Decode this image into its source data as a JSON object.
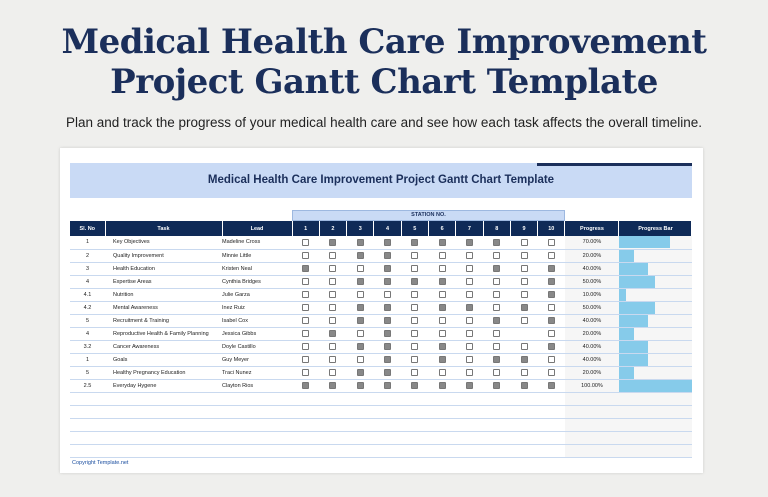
{
  "page": {
    "title_line1": "Medical Health Care Improvement",
    "title_line2": "Project Gantt Chart Template",
    "subtitle": "Plan and track the progress of your medical health care and see how each task affects the overall timeline."
  },
  "sheet": {
    "title": "Medical Health Care Improvement Project Gantt Chart Template",
    "station_header": "STATION NO.",
    "copyright": "Copyright Template.net",
    "headers": {
      "sl": "Sl. No",
      "task": "Task",
      "lead": "Lead",
      "stations": [
        "1",
        "2",
        "3",
        "4",
        "5",
        "6",
        "7",
        "8",
        "9",
        "10"
      ],
      "progress": "Progress",
      "bar": "Progress Bar"
    },
    "bar_color": "#86cbea",
    "header_color": "#0f2a57",
    "rows": [
      {
        "sl": "1",
        "task": "Key Objectives",
        "lead": "Madeline Cross",
        "checks": [
          0,
          1,
          1,
          1,
          1,
          1,
          1,
          1,
          0,
          0
        ],
        "progress": "70.00%",
        "pct": 70
      },
      {
        "sl": "2",
        "task": "Quality Improvement",
        "lead": "Minnie Little",
        "checks": [
          0,
          0,
          1,
          1,
          0,
          0,
          0,
          0,
          0,
          0
        ],
        "progress": "20.00%",
        "pct": 20
      },
      {
        "sl": "3",
        "task": "Health Education",
        "lead": "Kristen Neal",
        "checks": [
          1,
          0,
          0,
          1,
          0,
          0,
          0,
          1,
          0,
          1
        ],
        "progress": "40.00%",
        "pct": 40
      },
      {
        "sl": "4",
        "task": "Expertise Areas",
        "lead": "Cynthia Bridges",
        "checks": [
          0,
          0,
          1,
          1,
          1,
          1,
          0,
          0,
          0,
          1
        ],
        "progress": "50.00%",
        "pct": 50
      },
      {
        "sl": "4.1",
        "task": "Nutrition",
        "lead": "Julie Garza",
        "checks": [
          0,
          0,
          0,
          0,
          0,
          0,
          0,
          0,
          0,
          1
        ],
        "progress": "10.00%",
        "pct": 10
      },
      {
        "sl": "4.2",
        "task": "Mental Awareness",
        "lead": "Inez Ruiz",
        "checks": [
          0,
          0,
          1,
          1,
          0,
          1,
          1,
          0,
          1,
          0
        ],
        "progress": "50.00%",
        "pct": 50
      },
      {
        "sl": "5",
        "task": "Recruitment & Training",
        "lead": "Isabel Cox",
        "checks": [
          0,
          0,
          1,
          1,
          0,
          0,
          0,
          1,
          0,
          1
        ],
        "progress": "40.00%",
        "pct": 40
      },
      {
        "sl": "4",
        "task": "Reproductive Health & Family Planning",
        "lead": "Jessica Gibbs",
        "checks": [
          0,
          1,
          0,
          1,
          0,
          0,
          0,
          0,
          null,
          0
        ],
        "progress": "20.00%",
        "pct": 20
      },
      {
        "sl": "3.2",
        "task": "Cancer Awareness",
        "lead": "Doyle Castillo",
        "checks": [
          0,
          0,
          1,
          1,
          0,
          1,
          0,
          0,
          0,
          1
        ],
        "progress": "40.00%",
        "pct": 40
      },
      {
        "sl": "1",
        "task": "Goals",
        "lead": "Guy Meyer",
        "checks": [
          0,
          0,
          0,
          1,
          0,
          1,
          0,
          1,
          1,
          0
        ],
        "progress": "40.00%",
        "pct": 40
      },
      {
        "sl": "5",
        "task": "Healthy Pregnancy Education",
        "lead": "Traci Nunez",
        "checks": [
          0,
          0,
          1,
          1,
          0,
          0,
          0,
          0,
          0,
          0
        ],
        "progress": "20.00%",
        "pct": 20
      },
      {
        "sl": "2.5",
        "task": "Everyday Hygene",
        "lead": "Clayton Rios",
        "checks": [
          1,
          1,
          1,
          1,
          1,
          1,
          1,
          1,
          1,
          1
        ],
        "progress": "100.00%",
        "pct": 100
      }
    ]
  }
}
